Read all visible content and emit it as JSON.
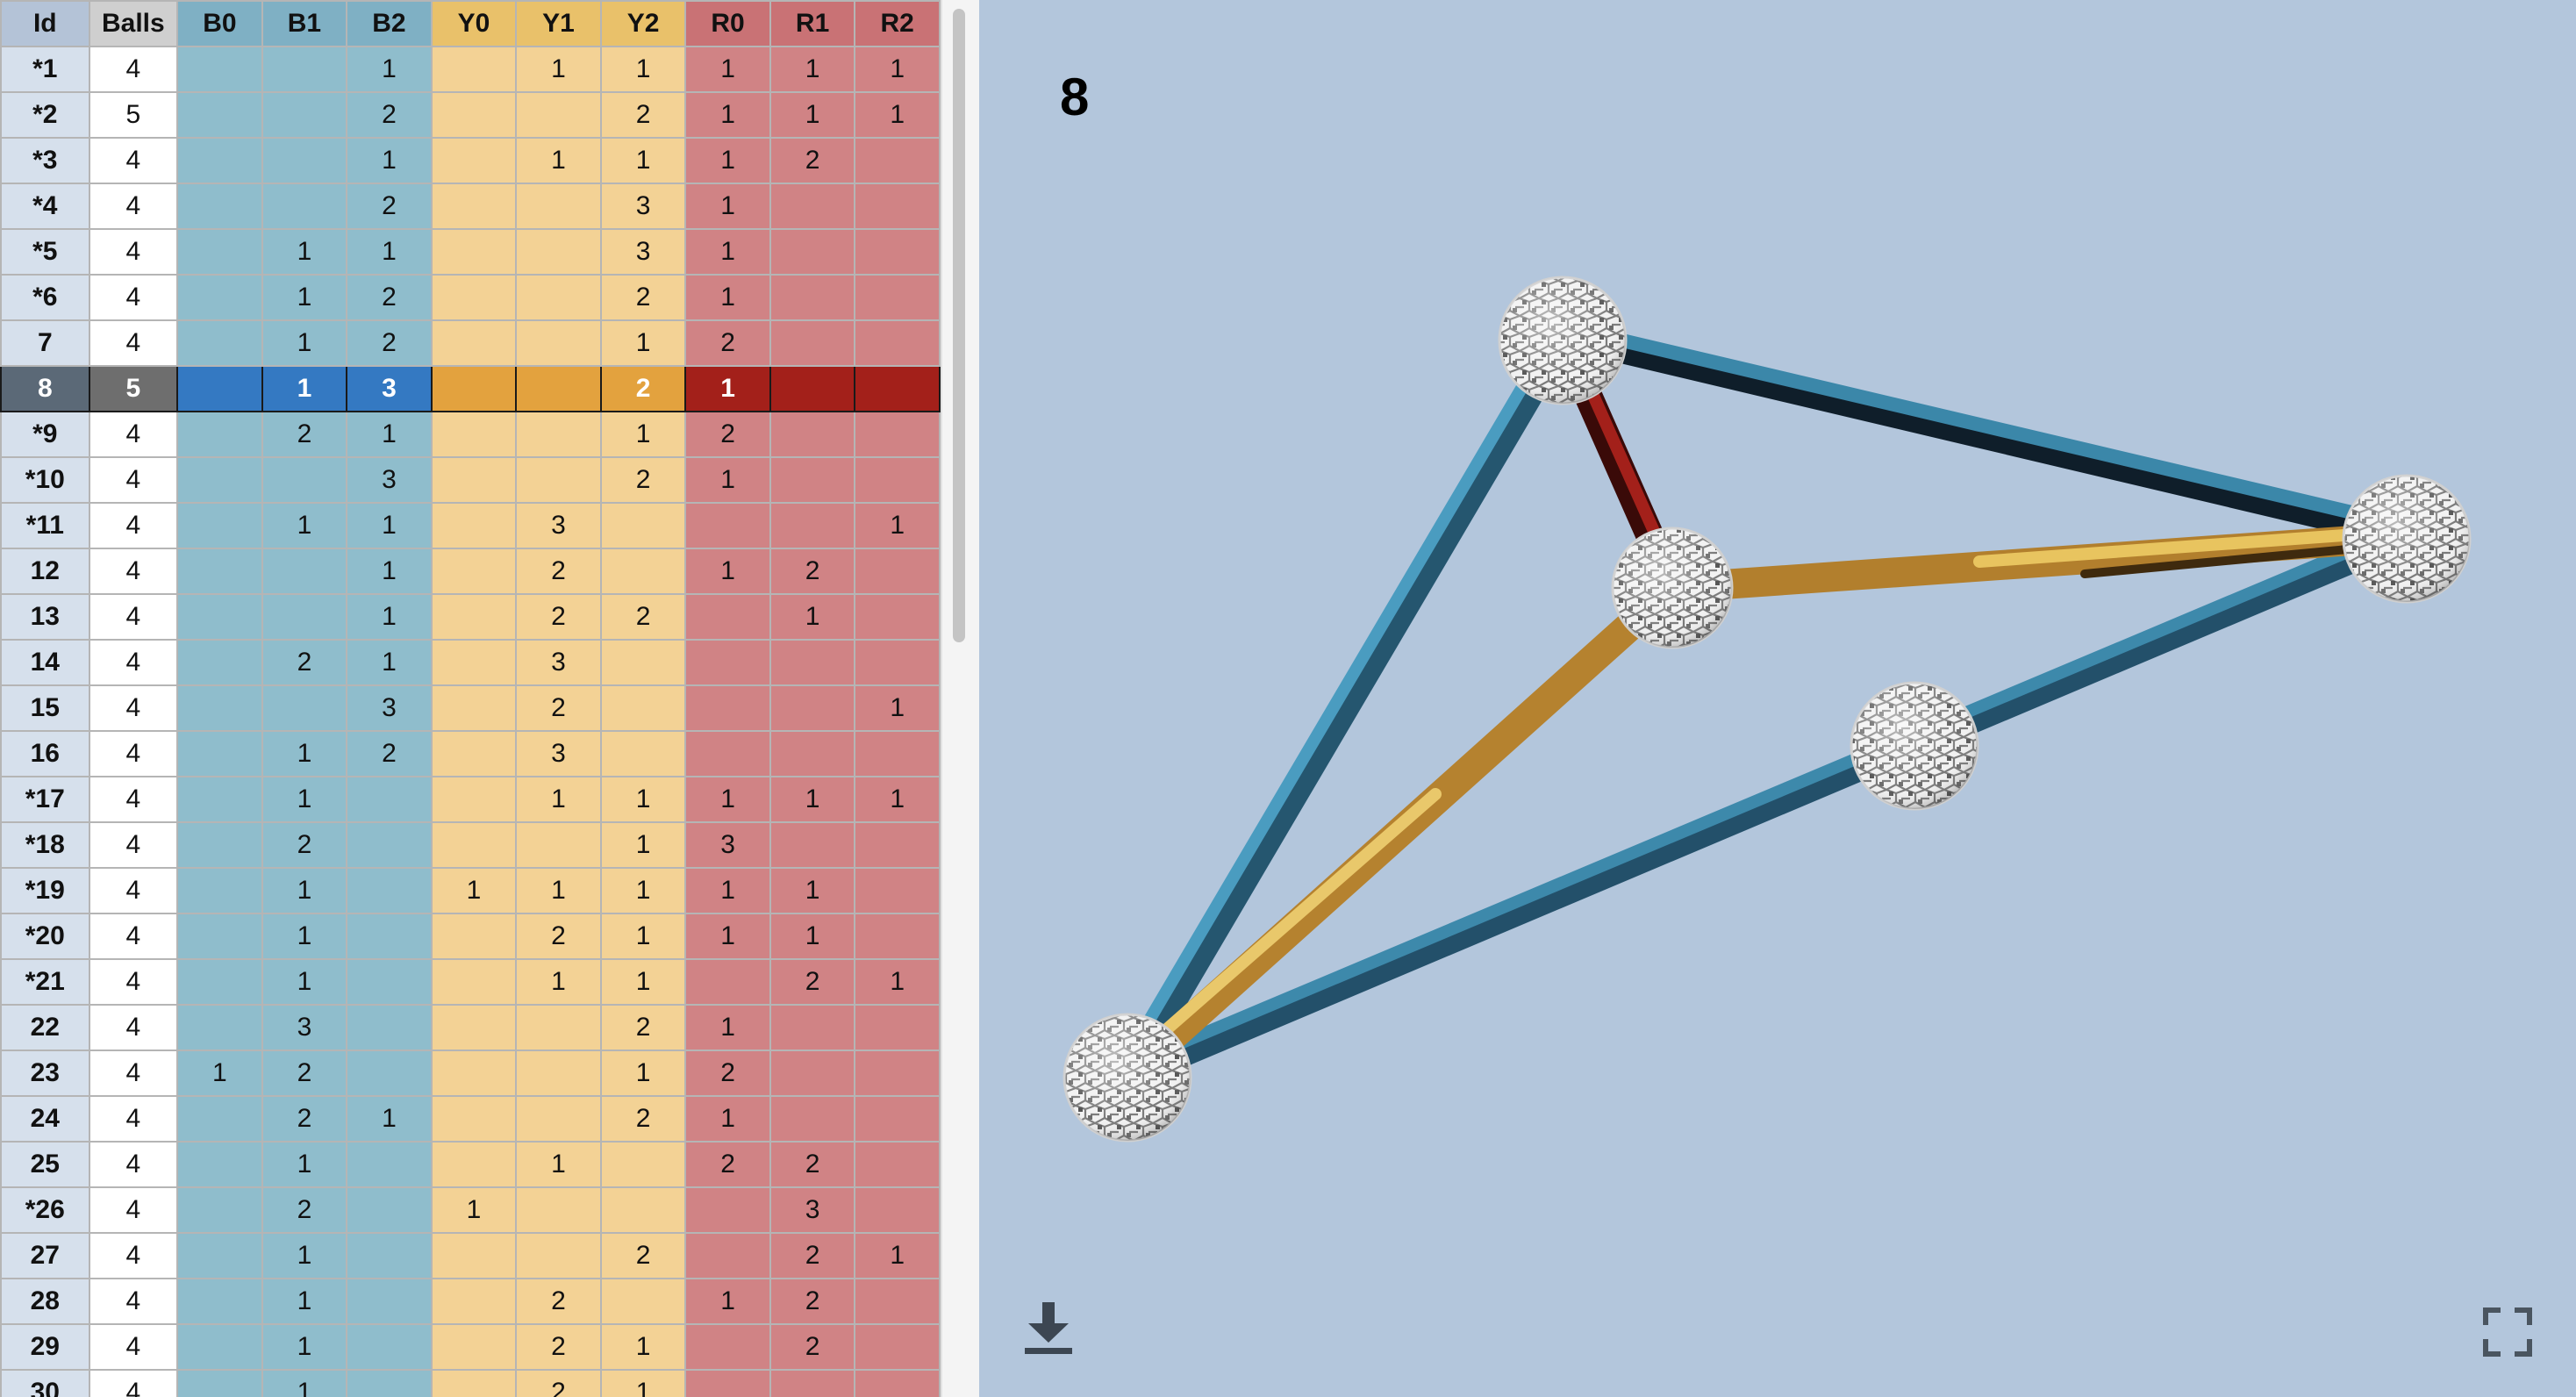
{
  "table": {
    "columns": [
      "Id",
      "Balls",
      "B0",
      "B1",
      "B2",
      "Y0",
      "Y1",
      "Y2",
      "R0",
      "R1",
      "R2"
    ],
    "selected_index": 7,
    "rows": [
      [
        "*1",
        "4",
        "",
        "",
        "1",
        "",
        "1",
        "1",
        "1",
        "1",
        "1"
      ],
      [
        "*2",
        "5",
        "",
        "",
        "2",
        "",
        "",
        "2",
        "1",
        "1",
        "1"
      ],
      [
        "*3",
        "4",
        "",
        "",
        "1",
        "",
        "1",
        "1",
        "1",
        "2",
        ""
      ],
      [
        "*4",
        "4",
        "",
        "",
        "2",
        "",
        "",
        "3",
        "1",
        "",
        ""
      ],
      [
        "*5",
        "4",
        "",
        "1",
        "1",
        "",
        "",
        "3",
        "1",
        "",
        ""
      ],
      [
        "*6",
        "4",
        "",
        "1",
        "2",
        "",
        "",
        "2",
        "1",
        "",
        ""
      ],
      [
        "7",
        "4",
        "",
        "1",
        "2",
        "",
        "",
        "1",
        "2",
        "",
        ""
      ],
      [
        "8",
        "5",
        "",
        "1",
        "3",
        "",
        "",
        "2",
        "1",
        "",
        ""
      ],
      [
        "*9",
        "4",
        "",
        "2",
        "1",
        "",
        "",
        "1",
        "2",
        "",
        ""
      ],
      [
        "*10",
        "4",
        "",
        "",
        "3",
        "",
        "",
        "2",
        "1",
        "",
        ""
      ],
      [
        "*11",
        "4",
        "",
        "1",
        "1",
        "",
        "3",
        "",
        "",
        "",
        "1"
      ],
      [
        "12",
        "4",
        "",
        "",
        "1",
        "",
        "2",
        "",
        "1",
        "2",
        ""
      ],
      [
        "13",
        "4",
        "",
        "",
        "1",
        "",
        "2",
        "2",
        "",
        "1",
        ""
      ],
      [
        "14",
        "4",
        "",
        "2",
        "1",
        "",
        "3",
        "",
        "",
        "",
        ""
      ],
      [
        "15",
        "4",
        "",
        "",
        "3",
        "",
        "2",
        "",
        "",
        "",
        "1"
      ],
      [
        "16",
        "4",
        "",
        "1",
        "2",
        "",
        "3",
        "",
        "",
        "",
        ""
      ],
      [
        "*17",
        "4",
        "",
        "1",
        "",
        "",
        "1",
        "1",
        "1",
        "1",
        "1"
      ],
      [
        "*18",
        "4",
        "",
        "2",
        "",
        "",
        "",
        "1",
        "3",
        "",
        ""
      ],
      [
        "*19",
        "4",
        "",
        "1",
        "",
        "1",
        "1",
        "1",
        "1",
        "1",
        ""
      ],
      [
        "*20",
        "4",
        "",
        "1",
        "",
        "",
        "2",
        "1",
        "1",
        "1",
        ""
      ],
      [
        "*21",
        "4",
        "",
        "1",
        "",
        "",
        "1",
        "1",
        "",
        "2",
        "1"
      ],
      [
        "22",
        "4",
        "",
        "3",
        "",
        "",
        "",
        "2",
        "1",
        "",
        ""
      ],
      [
        "23",
        "4",
        "1",
        "2",
        "",
        "",
        "",
        "1",
        "2",
        "",
        ""
      ],
      [
        "24",
        "4",
        "",
        "2",
        "1",
        "",
        "",
        "2",
        "1",
        "",
        ""
      ],
      [
        "25",
        "4",
        "",
        "1",
        "",
        "",
        "1",
        "",
        "2",
        "2",
        ""
      ],
      [
        "*26",
        "4",
        "",
        "2",
        "",
        "1",
        "",
        "",
        "",
        "3",
        ""
      ],
      [
        "27",
        "4",
        "",
        "1",
        "",
        "",
        "",
        "2",
        "",
        "2",
        "1"
      ],
      [
        "28",
        "4",
        "",
        "1",
        "",
        "",
        "2",
        "",
        "1",
        "2",
        ""
      ],
      [
        "29",
        "4",
        "",
        "1",
        "",
        "",
        "2",
        "1",
        "",
        "2",
        ""
      ],
      [
        "30",
        "4",
        "",
        "1",
        "",
        "",
        "2",
        "1",
        "",
        "",
        ""
      ]
    ]
  },
  "viewer": {
    "title": "8",
    "background": "#b3c6dc",
    "strut_colors": {
      "blue": "#3b87a9",
      "yellow": "#d9a441",
      "red": "#9a1f1b"
    },
    "download_icon": "download-icon",
    "fullscreen_icon": "fullscreen-icon"
  }
}
